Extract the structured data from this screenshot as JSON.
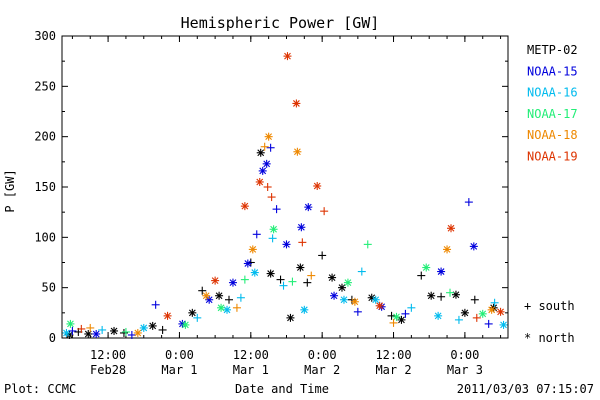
{
  "chart_data": {
    "type": "scatter",
    "title": "Hemispheric Power [GW]",
    "ylabel": "P [GW]",
    "xlabel": "Date and Time",
    "ylim": [
      0,
      300
    ],
    "xlim": [
      "2011-02-28 04:15",
      "2011-03-03 07:15"
    ],
    "yticks": [
      0,
      50,
      100,
      150,
      200,
      250,
      300
    ],
    "xticks": [
      {
        "t": "2011-02-28 12:00",
        "time": "12:00",
        "date": "Feb28"
      },
      {
        "t": "2011-03-01 00:00",
        "time": "0:00",
        "date": "Mar 1"
      },
      {
        "t": "2011-03-01 12:00",
        "time": "12:00",
        "date": "Mar 1"
      },
      {
        "t": "2011-03-02 00:00",
        "time": "0:00",
        "date": "Mar 2"
      },
      {
        "t": "2011-03-02 12:00",
        "time": "12:00",
        "date": "Mar 2"
      },
      {
        "t": "2011-03-03 00:00",
        "time": "0:00",
        "date": "Mar 3"
      }
    ],
    "markers": {
      "plus": "south",
      "star": "north"
    },
    "series": [
      {
        "name": "METP-02",
        "color": "#000000",
        "points": [
          {
            "t": "2011-02-28 05:30",
            "y": 3,
            "m": "star"
          },
          {
            "t": "2011-02-28 07:00",
            "y": 6,
            "m": "plus"
          },
          {
            "t": "2011-02-28 08:40",
            "y": 4,
            "m": "star"
          },
          {
            "t": "2011-02-28 13:00",
            "y": 7,
            "m": "star"
          },
          {
            "t": "2011-02-28 14:40",
            "y": 5,
            "m": "plus"
          },
          {
            "t": "2011-02-28 19:30",
            "y": 12,
            "m": "star"
          },
          {
            "t": "2011-02-28 21:10",
            "y": 8,
            "m": "plus"
          },
          {
            "t": "2011-03-01 02:10",
            "y": 25,
            "m": "star"
          },
          {
            "t": "2011-03-01 03:50",
            "y": 47,
            "m": "plus"
          },
          {
            "t": "2011-03-01 06:40",
            "y": 42,
            "m": "star"
          },
          {
            "t": "2011-03-01 08:20",
            "y": 38,
            "m": "plus"
          },
          {
            "t": "2011-03-01 12:00",
            "y": 75,
            "m": "plus"
          },
          {
            "t": "2011-03-01 13:40",
            "y": 184,
            "m": "star"
          },
          {
            "t": "2011-03-01 15:20",
            "y": 64,
            "m": "star"
          },
          {
            "t": "2011-03-01 17:00",
            "y": 58,
            "m": "plus"
          },
          {
            "t": "2011-03-01 18:40",
            "y": 20,
            "m": "star"
          },
          {
            "t": "2011-03-01 20:20",
            "y": 70,
            "m": "star"
          },
          {
            "t": "2011-03-01 21:30",
            "y": 55,
            "m": "plus"
          },
          {
            "t": "2011-03-02 00:00",
            "y": 82,
            "m": "plus"
          },
          {
            "t": "2011-03-02 01:40",
            "y": 60,
            "m": "star"
          },
          {
            "t": "2011-03-02 03:20",
            "y": 50,
            "m": "star"
          },
          {
            "t": "2011-03-02 05:00",
            "y": 38,
            "m": "plus"
          },
          {
            "t": "2011-03-02 08:20",
            "y": 40,
            "m": "star"
          },
          {
            "t": "2011-03-02 11:40",
            "y": 22,
            "m": "plus"
          },
          {
            "t": "2011-03-02 13:20",
            "y": 18,
            "m": "star"
          },
          {
            "t": "2011-03-02 16:40",
            "y": 62,
            "m": "plus"
          },
          {
            "t": "2011-03-02 18:20",
            "y": 42,
            "m": "star"
          },
          {
            "t": "2011-03-02 20:00",
            "y": 41,
            "m": "plus"
          },
          {
            "t": "2011-03-02 22:30",
            "y": 43,
            "m": "star"
          },
          {
            "t": "2011-03-03 00:00",
            "y": 25,
            "m": "star"
          },
          {
            "t": "2011-03-03 01:40",
            "y": 38,
            "m": "plus"
          },
          {
            "t": "2011-03-03 04:50",
            "y": 30,
            "m": "star"
          }
        ]
      },
      {
        "name": "NOAA-15",
        "color": "#0000dd",
        "points": [
          {
            "t": "2011-02-28 06:00",
            "y": 7,
            "m": "plus"
          },
          {
            "t": "2011-02-28 10:00",
            "y": 4,
            "m": "star"
          },
          {
            "t": "2011-02-28 16:00",
            "y": 3,
            "m": "plus"
          },
          {
            "t": "2011-02-28 20:00",
            "y": 33,
            "m": "plus"
          },
          {
            "t": "2011-03-01 00:30",
            "y": 14,
            "m": "star"
          },
          {
            "t": "2011-03-01 05:00",
            "y": 38,
            "m": "star"
          },
          {
            "t": "2011-03-01 09:00",
            "y": 55,
            "m": "star"
          },
          {
            "t": "2011-03-01 11:30",
            "y": 74,
            "m": "star"
          },
          {
            "t": "2011-03-01 13:00",
            "y": 103,
            "m": "plus"
          },
          {
            "t": "2011-03-01 14:00",
            "y": 166,
            "m": "star"
          },
          {
            "t": "2011-03-01 14:40",
            "y": 173,
            "m": "star"
          },
          {
            "t": "2011-03-01 15:20",
            "y": 189,
            "m": "plus"
          },
          {
            "t": "2011-03-01 16:20",
            "y": 128,
            "m": "plus"
          },
          {
            "t": "2011-03-01 18:00",
            "y": 93,
            "m": "star"
          },
          {
            "t": "2011-03-01 20:30",
            "y": 110,
            "m": "star"
          },
          {
            "t": "2011-03-01 21:40",
            "y": 130,
            "m": "star"
          },
          {
            "t": "2011-03-02 02:00",
            "y": 42,
            "m": "star"
          },
          {
            "t": "2011-03-02 06:00",
            "y": 26,
            "m": "plus"
          },
          {
            "t": "2011-03-02 10:00",
            "y": 31,
            "m": "star"
          },
          {
            "t": "2011-03-02 14:00",
            "y": 24,
            "m": "plus"
          },
          {
            "t": "2011-03-02 20:00",
            "y": 66,
            "m": "star"
          },
          {
            "t": "2011-03-03 00:40",
            "y": 135,
            "m": "plus"
          },
          {
            "t": "2011-03-03 01:30",
            "y": 91,
            "m": "star"
          },
          {
            "t": "2011-03-03 04:00",
            "y": 14,
            "m": "plus"
          }
        ]
      },
      {
        "name": "NOAA-16",
        "color": "#00bbee",
        "points": [
          {
            "t": "2011-02-28 05:00",
            "y": 5,
            "m": "star"
          },
          {
            "t": "2011-02-28 11:00",
            "y": 8,
            "m": "plus"
          },
          {
            "t": "2011-02-28 18:00",
            "y": 10,
            "m": "star"
          },
          {
            "t": "2011-03-01 03:00",
            "y": 20,
            "m": "plus"
          },
          {
            "t": "2011-03-01 08:00",
            "y": 28,
            "m": "star"
          },
          {
            "t": "2011-03-01 10:20",
            "y": 40,
            "m": "plus"
          },
          {
            "t": "2011-03-01 12:40",
            "y": 65,
            "m": "star"
          },
          {
            "t": "2011-03-01 15:40",
            "y": 99,
            "m": "plus"
          },
          {
            "t": "2011-03-01 17:30",
            "y": 52,
            "m": "plus"
          },
          {
            "t": "2011-03-01 21:00",
            "y": 28,
            "m": "star"
          },
          {
            "t": "2011-03-02 03:40",
            "y": 38,
            "m": "star"
          },
          {
            "t": "2011-03-02 06:40",
            "y": 66,
            "m": "plus"
          },
          {
            "t": "2011-03-02 09:00",
            "y": 38,
            "m": "star"
          },
          {
            "t": "2011-03-02 15:00",
            "y": 30,
            "m": "plus"
          },
          {
            "t": "2011-03-02 19:30",
            "y": 22,
            "m": "star"
          },
          {
            "t": "2011-03-02 23:00",
            "y": 18,
            "m": "plus"
          },
          {
            "t": "2011-03-03 05:00",
            "y": 35,
            "m": "plus"
          },
          {
            "t": "2011-03-03 06:30",
            "y": 13,
            "m": "star"
          }
        ]
      },
      {
        "name": "NOAA-17",
        "color": "#22ee77",
        "points": [
          {
            "t": "2011-02-28 05:40",
            "y": 14,
            "m": "star"
          },
          {
            "t": "2011-02-28 15:00",
            "y": 6,
            "m": "plus"
          },
          {
            "t": "2011-03-01 01:00",
            "y": 13,
            "m": "star"
          },
          {
            "t": "2011-03-01 07:00",
            "y": 30,
            "m": "star"
          },
          {
            "t": "2011-03-01 11:00",
            "y": 58,
            "m": "plus"
          },
          {
            "t": "2011-03-01 15:50",
            "y": 108,
            "m": "star"
          },
          {
            "t": "2011-03-01 19:00",
            "y": 56,
            "m": "plus"
          },
          {
            "t": "2011-03-02 04:20",
            "y": 55,
            "m": "star"
          },
          {
            "t": "2011-03-02 07:40",
            "y": 93,
            "m": "plus"
          },
          {
            "t": "2011-03-02 12:30",
            "y": 21,
            "m": "star"
          },
          {
            "t": "2011-03-02 17:30",
            "y": 70,
            "m": "star"
          },
          {
            "t": "2011-03-02 21:30",
            "y": 45,
            "m": "plus"
          },
          {
            "t": "2011-03-03 03:00",
            "y": 24,
            "m": "star"
          }
        ]
      },
      {
        "name": "NOAA-18",
        "color": "#ee8800",
        "points": [
          {
            "t": "2011-02-28 09:00",
            "y": 10,
            "m": "plus"
          },
          {
            "t": "2011-02-28 17:00",
            "y": 5,
            "m": "star"
          },
          {
            "t": "2011-03-01 04:30",
            "y": 42,
            "m": "star"
          },
          {
            "t": "2011-03-01 09:40",
            "y": 30,
            "m": "plus"
          },
          {
            "t": "2011-03-01 12:20",
            "y": 88,
            "m": "star"
          },
          {
            "t": "2011-03-01 14:20",
            "y": 190,
            "m": "plus"
          },
          {
            "t": "2011-03-01 15:00",
            "y": 200,
            "m": "star"
          },
          {
            "t": "2011-03-01 19:50",
            "y": 185,
            "m": "star"
          },
          {
            "t": "2011-03-01 22:10",
            "y": 62,
            "m": "plus"
          },
          {
            "t": "2011-03-02 05:30",
            "y": 36,
            "m": "star"
          },
          {
            "t": "2011-03-02 12:00",
            "y": 15,
            "m": "plus"
          },
          {
            "t": "2011-03-02 21:00",
            "y": 88,
            "m": "star"
          },
          {
            "t": "2011-03-03 04:30",
            "y": 28,
            "m": "star"
          }
        ]
      },
      {
        "name": "NOAA-19",
        "color": "#dd3300",
        "points": [
          {
            "t": "2011-02-28 07:30",
            "y": 9,
            "m": "plus"
          },
          {
            "t": "2011-02-28 22:00",
            "y": 22,
            "m": "star"
          },
          {
            "t": "2011-03-01 06:00",
            "y": 57,
            "m": "star"
          },
          {
            "t": "2011-03-01 11:00",
            "y": 131,
            "m": "star"
          },
          {
            "t": "2011-03-01 13:30",
            "y": 155,
            "m": "star"
          },
          {
            "t": "2011-03-01 14:50",
            "y": 150,
            "m": "plus"
          },
          {
            "t": "2011-03-01 15:30",
            "y": 140,
            "m": "plus"
          },
          {
            "t": "2011-03-01 18:10",
            "y": 280,
            "m": "star"
          },
          {
            "t": "2011-03-01 19:40",
            "y": 233,
            "m": "star"
          },
          {
            "t": "2011-03-01 20:40",
            "y": 95,
            "m": "plus"
          },
          {
            "t": "2011-03-01 23:10",
            "y": 151,
            "m": "star"
          },
          {
            "t": "2011-03-02 00:20",
            "y": 126,
            "m": "plus"
          },
          {
            "t": "2011-03-02 09:40",
            "y": 32,
            "m": "star"
          },
          {
            "t": "2011-03-02 21:40",
            "y": 109,
            "m": "star"
          },
          {
            "t": "2011-03-03 02:00",
            "y": 20,
            "m": "plus"
          },
          {
            "t": "2011-03-03 06:00",
            "y": 26,
            "m": "star"
          }
        ]
      }
    ]
  },
  "legend_markers": {
    "south_label": "+ south",
    "north_label": "* north"
  },
  "footer": {
    "source": "Plot: CCMC",
    "timestamp": "2011/03/03 07:15:07"
  }
}
